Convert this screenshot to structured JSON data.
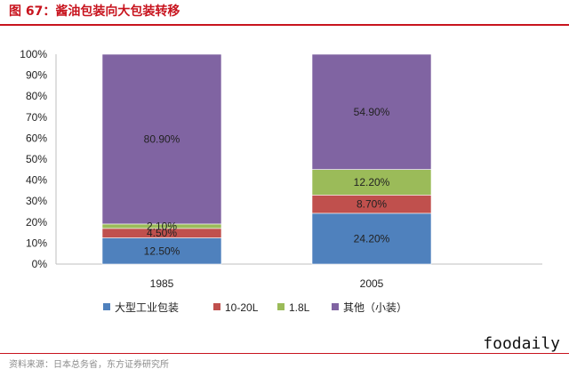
{
  "header": {
    "title": "图 67：酱油包装向大包装转移"
  },
  "footer": {
    "source": "资料来源：日本总务省，东方证券研究所",
    "watermark": "foodaily"
  },
  "colors": {
    "accent": "#c8141e"
  },
  "chart_data": {
    "type": "bar",
    "stacked": true,
    "categories": [
      "1985",
      "2005"
    ],
    "series": [
      {
        "name": "大型工业包装",
        "color": "#4f81bd",
        "values": [
          12.5,
          24.2
        ],
        "labels": [
          "12.50%",
          "24.20%"
        ]
      },
      {
        "name": "10-20L",
        "color": "#c0504d",
        "values": [
          4.5,
          8.7
        ],
        "labels": [
          "4.50%",
          "8.70%"
        ]
      },
      {
        "name": "1.8L",
        "color": "#9bbb59",
        "values": [
          2.1,
          12.2
        ],
        "labels": [
          "2.10%",
          "12.20%"
        ]
      },
      {
        "name": "其他（小装）",
        "color": "#8064a2",
        "values": [
          80.9,
          54.9
        ],
        "labels": [
          "80.90%",
          "54.90%"
        ]
      }
    ],
    "yticks": [
      "0%",
      "10%",
      "20%",
      "30%",
      "40%",
      "50%",
      "60%",
      "70%",
      "80%",
      "90%",
      "100%"
    ],
    "ylim": [
      0,
      100
    ],
    "grid": false,
    "legend": "bottom"
  }
}
